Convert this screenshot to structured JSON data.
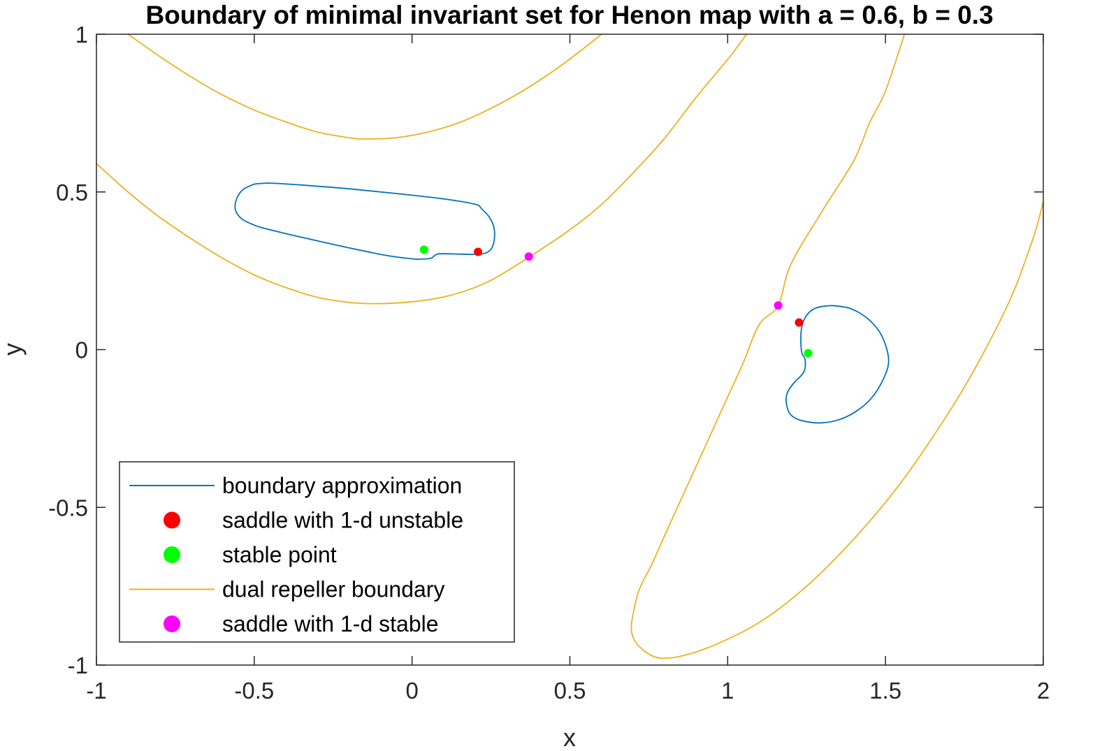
{
  "chart_data": {
    "type": "line",
    "title": "Boundary of minimal invariant set for Henon map with a = 0.6, b = 0.3",
    "xlabel": "x",
    "ylabel": "y",
    "xlim": [
      -1,
      2
    ],
    "ylim": [
      -1,
      1
    ],
    "xticks": [
      -1,
      -0.5,
      0,
      0.5,
      1,
      1.5,
      2
    ],
    "yticks": [
      -1,
      -0.5,
      0,
      0.5,
      1
    ],
    "xtick_labels": [
      "-1",
      "-0.5",
      "0",
      "0.5",
      "1",
      "1.5",
      "2"
    ],
    "ytick_labels": [
      "-1",
      "-0.5",
      "0",
      "0.5",
      "1"
    ],
    "grid": false,
    "legend_position": "bottom-left",
    "series": [
      {
        "name": "boundary approximation",
        "kind": "line",
        "color": "#0072BD",
        "segments": [
          [
            [
              -0.5,
              0.525
            ],
            [
              -0.45,
              0.528
            ],
            [
              -0.35,
              0.522
            ],
            [
              -0.2,
              0.51
            ],
            [
              -0.05,
              0.495
            ],
            [
              0.1,
              0.478
            ],
            [
              0.2,
              0.461
            ],
            [
              0.22,
              0.447
            ],
            [
              0.245,
              0.42
            ],
            [
              0.26,
              0.385
            ],
            [
              0.26,
              0.345
            ],
            [
              0.25,
              0.318
            ],
            [
              0.23,
              0.305
            ],
            [
              0.2,
              0.302
            ],
            [
              0.15,
              0.303
            ],
            [
              0.1,
              0.304
            ],
            [
              0.08,
              0.303
            ],
            [
              0.07,
              0.297
            ],
            [
              0.06,
              0.29
            ],
            [
              0.03,
              0.287
            ],
            [
              0.0,
              0.288
            ],
            [
              -0.1,
              0.302
            ],
            [
              -0.3,
              0.345
            ],
            [
              -0.45,
              0.38
            ],
            [
              -0.5,
              0.395
            ],
            [
              -0.54,
              0.415
            ],
            [
              -0.56,
              0.445
            ],
            [
              -0.555,
              0.48
            ],
            [
              -0.535,
              0.508
            ],
            [
              -0.5,
              0.525
            ]
          ],
          [
            [
              1.33,
              0.14
            ],
            [
              1.39,
              0.13
            ],
            [
              1.45,
              0.093
            ],
            [
              1.49,
              0.04
            ],
            [
              1.51,
              -0.035
            ],
            [
              1.49,
              -0.1
            ],
            [
              1.45,
              -0.16
            ],
            [
              1.4,
              -0.2
            ],
            [
              1.35,
              -0.223
            ],
            [
              1.3,
              -0.232
            ],
            [
              1.26,
              -0.23
            ],
            [
              1.22,
              -0.22
            ],
            [
              1.195,
              -0.2
            ],
            [
              1.185,
              -0.16
            ],
            [
              1.192,
              -0.13
            ],
            [
              1.215,
              -0.1
            ],
            [
              1.235,
              -0.08
            ],
            [
              1.245,
              -0.06
            ],
            [
              1.245,
              -0.03
            ],
            [
              1.235,
              -0.01
            ],
            [
              1.232,
              0.02
            ],
            [
              1.233,
              0.06
            ],
            [
              1.24,
              0.09
            ],
            [
              1.255,
              0.115
            ],
            [
              1.275,
              0.13
            ],
            [
              1.3,
              0.137
            ],
            [
              1.33,
              0.14
            ]
          ]
        ]
      },
      {
        "name": "saddle with 1-d unstable",
        "kind": "marker",
        "color": "#FF0000",
        "points": [
          [
            0.209,
            0.31
          ],
          [
            1.226,
            0.086
          ]
        ]
      },
      {
        "name": "stable point",
        "kind": "marker",
        "color": "#00FF00",
        "points": [
          [
            0.038,
            0.317
          ],
          [
            1.255,
            -0.011
          ]
        ]
      },
      {
        "name": "dual repeller boundary",
        "kind": "line",
        "color": "#EDB120",
        "segments": [
          [
            [
              -0.9,
              1.0
            ],
            [
              -0.8,
              0.93
            ],
            [
              -0.7,
              0.865
            ],
            [
              -0.6,
              0.807
            ],
            [
              -0.5,
              0.76
            ],
            [
              -0.4,
              0.722
            ],
            [
              -0.3,
              0.69
            ],
            [
              -0.2,
              0.672
            ],
            [
              -0.15,
              0.668
            ],
            [
              -0.05,
              0.672
            ],
            [
              0.05,
              0.69
            ],
            [
              0.15,
              0.72
            ],
            [
              0.25,
              0.765
            ],
            [
              0.35,
              0.82
            ],
            [
              0.45,
              0.885
            ],
            [
              0.55,
              0.96
            ],
            [
              0.6,
              1.0
            ]
          ],
          [
            [
              -1.0,
              0.59
            ],
            [
              -0.9,
              0.5
            ],
            [
              -0.8,
              0.42
            ],
            [
              -0.7,
              0.352
            ],
            [
              -0.6,
              0.29
            ],
            [
              -0.5,
              0.237
            ],
            [
              -0.4,
              0.197
            ],
            [
              -0.3,
              0.166
            ],
            [
              -0.2,
              0.15
            ],
            [
              -0.13,
              0.146
            ],
            [
              -0.05,
              0.148
            ],
            [
              0.05,
              0.158
            ],
            [
              0.15,
              0.18
            ],
            [
              0.25,
              0.22
            ],
            [
              0.37,
              0.293
            ],
            [
              0.5,
              0.38
            ],
            [
              0.6,
              0.46
            ],
            [
              0.7,
              0.56
            ],
            [
              0.8,
              0.67
            ],
            [
              0.9,
              0.8
            ],
            [
              1.0,
              0.92
            ],
            [
              1.06,
              1.0
            ]
          ],
          [
            [
              1.56,
              1.0
            ],
            [
              1.5,
              0.82
            ],
            [
              1.45,
              0.72
            ],
            [
              1.4,
              0.6
            ],
            [
              1.3,
              0.44
            ],
            [
              1.2,
              0.27
            ],
            [
              1.16,
              0.14
            ],
            [
              1.1,
              0.08
            ],
            [
              1.05,
              -0.04
            ],
            [
              1.0,
              -0.15
            ],
            [
              0.95,
              -0.26
            ],
            [
              0.9,
              -0.37
            ],
            [
              0.85,
              -0.48
            ],
            [
              0.8,
              -0.59
            ],
            [
              0.76,
              -0.68
            ],
            [
              0.72,
              -0.76
            ],
            [
              0.7,
              -0.84
            ],
            [
              0.695,
              -0.89
            ],
            [
              0.71,
              -0.93
            ],
            [
              0.75,
              -0.965
            ],
            [
              0.79,
              -0.978
            ],
            [
              0.85,
              -0.972
            ],
            [
              0.95,
              -0.94
            ],
            [
              1.1,
              -0.865
            ],
            [
              1.25,
              -0.75
            ],
            [
              1.4,
              -0.6
            ],
            [
              1.55,
              -0.42
            ],
            [
              1.7,
              -0.2
            ],
            [
              1.8,
              -0.03
            ],
            [
              1.9,
              0.17
            ],
            [
              1.97,
              0.36
            ],
            [
              2.0,
              0.47
            ]
          ]
        ]
      },
      {
        "name": "saddle with 1-d stable",
        "kind": "marker",
        "color": "#FF00FF",
        "points": [
          [
            0.37,
            0.295
          ],
          [
            1.16,
            0.14
          ]
        ]
      }
    ]
  }
}
